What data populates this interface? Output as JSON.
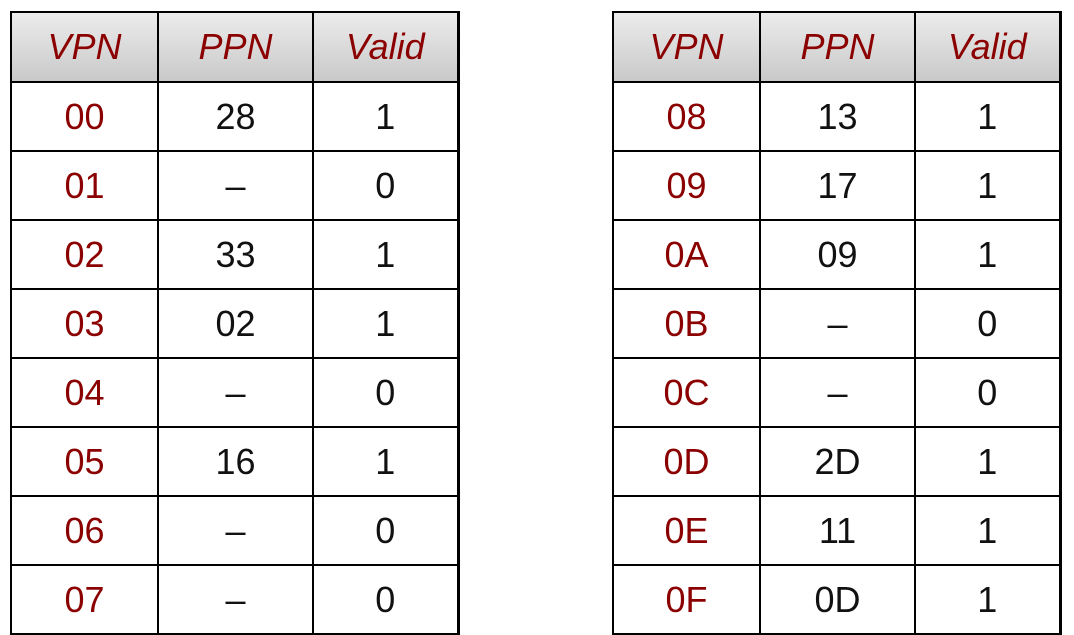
{
  "headers": {
    "vpn": "VPN",
    "ppn": "PPN",
    "valid": "Valid"
  },
  "left_table": [
    {
      "vpn": "00",
      "ppn": "28",
      "valid": "1"
    },
    {
      "vpn": "01",
      "ppn": "–",
      "valid": "0"
    },
    {
      "vpn": "02",
      "ppn": "33",
      "valid": "1"
    },
    {
      "vpn": "03",
      "ppn": "02",
      "valid": "1"
    },
    {
      "vpn": "04",
      "ppn": "–",
      "valid": "0"
    },
    {
      "vpn": "05",
      "ppn": "16",
      "valid": "1"
    },
    {
      "vpn": "06",
      "ppn": "–",
      "valid": "0"
    },
    {
      "vpn": "07",
      "ppn": "–",
      "valid": "0"
    }
  ],
  "right_table": [
    {
      "vpn": "08",
      "ppn": "13",
      "valid": "1"
    },
    {
      "vpn": "09",
      "ppn": "17",
      "valid": "1"
    },
    {
      "vpn": "0A",
      "ppn": "09",
      "valid": "1"
    },
    {
      "vpn": "0B",
      "ppn": "–",
      "valid": "0"
    },
    {
      "vpn": "0C",
      "ppn": "–",
      "valid": "0"
    },
    {
      "vpn": "0D",
      "ppn": "2D",
      "valid": "1"
    },
    {
      "vpn": "0E",
      "ppn": "11",
      "valid": "1"
    },
    {
      "vpn": "0F",
      "ppn": "0D",
      "valid": "1"
    }
  ],
  "colors": {
    "vpn_text": "#8b0000",
    "header_text": "#8b0000",
    "body_text": "#111111",
    "header_bg": "#d9d9d9"
  }
}
